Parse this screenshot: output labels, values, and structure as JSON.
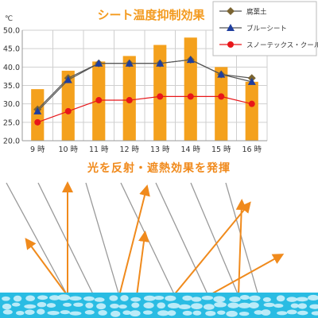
{
  "chart_data": {
    "type": "bar",
    "title": "シート温度抑制効果",
    "unit_label": "℃",
    "categories": [
      "9 時",
      "10 時",
      "11 時",
      "12 時",
      "13 時",
      "14 時",
      "15 時",
      "16 時"
    ],
    "ylim": [
      20,
      50
    ],
    "yticks": [
      "20.0",
      "25.0",
      "30.0",
      "35.0",
      "40.0",
      "45.0",
      "50.0"
    ],
    "grid": true,
    "legend_position": "top-right",
    "bars": {
      "name": "",
      "values": [
        34,
        39,
        41.5,
        43,
        46,
        48,
        40,
        36
      ],
      "color": "#F4A11D"
    },
    "series": [
      {
        "name": "腐葉土",
        "marker": "diamond",
        "color": "#7A6432",
        "line_color": "#555555",
        "values": [
          28.5,
          37,
          41,
          41,
          41,
          42,
          38,
          37
        ]
      },
      {
        "name": "ブルーシート",
        "marker": "triangle",
        "color": "#1F3E9E",
        "line_color": "#555555",
        "values": [
          28,
          36.5,
          41,
          41,
          41,
          42,
          38,
          36
        ]
      },
      {
        "name": "スノーテックス・クール",
        "marker": "circle",
        "color": "#E8161A",
        "line_color": "#E8161A",
        "values": [
          25,
          28,
          31,
          31,
          32,
          32,
          32,
          30
        ]
      }
    ]
  },
  "illustration": {
    "caption": "光を反射・遮熱効果を発揮",
    "caption_color": "#F08A1C",
    "arrow_color": "#F08A1C",
    "incoming_line_color": "#999999",
    "water_color": "#29BCE3",
    "pebble_color": "#CBEFFA"
  }
}
